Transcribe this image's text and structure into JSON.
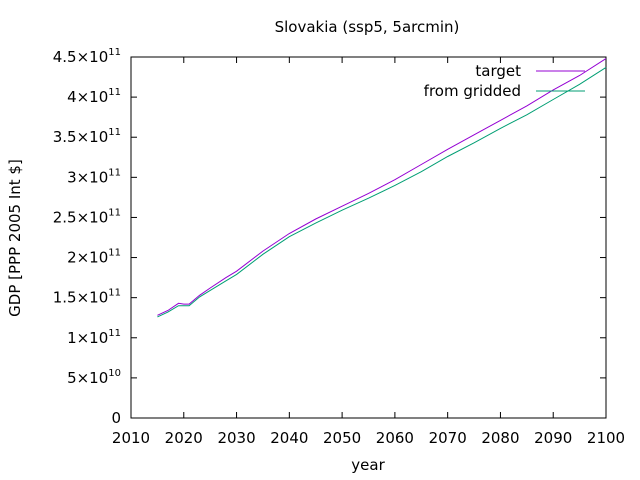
{
  "chart_data": {
    "type": "line",
    "title": "Slovakia (ssp5, 5arcmin)",
    "xlabel": "year",
    "ylabel": "GDP [PPP 2005 Int $]",
    "xlim": [
      2010,
      2100
    ],
    "ylim": [
      0,
      450000000000
    ],
    "legend_position": "top-right",
    "grid": false,
    "x_ticks": [
      {
        "value": 2010,
        "label": "2010"
      },
      {
        "value": 2020,
        "label": "2020"
      },
      {
        "value": 2030,
        "label": "2030"
      },
      {
        "value": 2040,
        "label": "2040"
      },
      {
        "value": 2050,
        "label": "2050"
      },
      {
        "value": 2060,
        "label": "2060"
      },
      {
        "value": 2070,
        "label": "2070"
      },
      {
        "value": 2080,
        "label": "2080"
      },
      {
        "value": 2090,
        "label": "2090"
      },
      {
        "value": 2100,
        "label": "2100"
      }
    ],
    "y_ticks": [
      {
        "value": 0,
        "mantissa": "0",
        "exponent": ""
      },
      {
        "value": 50000000000,
        "mantissa": "5×10",
        "exponent": "10"
      },
      {
        "value": 100000000000,
        "mantissa": "1×10",
        "exponent": "11"
      },
      {
        "value": 150000000000,
        "mantissa": "1.5×10",
        "exponent": "11"
      },
      {
        "value": 200000000000,
        "mantissa": "2×10",
        "exponent": "11"
      },
      {
        "value": 250000000000,
        "mantissa": "2.5×10",
        "exponent": "11"
      },
      {
        "value": 300000000000,
        "mantissa": "3×10",
        "exponent": "11"
      },
      {
        "value": 350000000000,
        "mantissa": "3.5×10",
        "exponent": "11"
      },
      {
        "value": 400000000000,
        "mantissa": "4×10",
        "exponent": "11"
      },
      {
        "value": 450000000000,
        "mantissa": "4.5×10",
        "exponent": "11"
      }
    ],
    "series": [
      {
        "name": "target",
        "color": "#9400d3",
        "x": [
          2015,
          2017,
          2019,
          2020,
          2021,
          2023,
          2025,
          2028,
          2030,
          2035,
          2040,
          2045,
          2050,
          2055,
          2060,
          2065,
          2070,
          2075,
          2080,
          2085,
          2090,
          2095,
          2100
        ],
        "values": [
          128000000000,
          134000000000,
          143000000000,
          142000000000,
          142000000000,
          153000000000,
          162000000000,
          175000000000,
          183000000000,
          208000000000,
          230000000000,
          248000000000,
          264000000000,
          280000000000,
          297000000000,
          316000000000,
          335000000000,
          353000000000,
          371000000000,
          389000000000,
          409000000000,
          427000000000,
          448000000000
        ]
      },
      {
        "name": "from gridded",
        "color": "#009e73",
        "x": [
          2015,
          2017,
          2019,
          2020,
          2021,
          2023,
          2025,
          2028,
          2030,
          2035,
          2040,
          2045,
          2050,
          2055,
          2060,
          2065,
          2070,
          2075,
          2080,
          2085,
          2090,
          2095,
          2100
        ],
        "values": [
          126000000000,
          132000000000,
          140000000000,
          140000000000,
          140000000000,
          151000000000,
          159000000000,
          171000000000,
          179000000000,
          204000000000,
          226000000000,
          243000000000,
          259000000000,
          274000000000,
          290000000000,
          307000000000,
          326000000000,
          343000000000,
          361000000000,
          378000000000,
          397000000000,
          416000000000,
          437000000000
        ]
      }
    ]
  }
}
